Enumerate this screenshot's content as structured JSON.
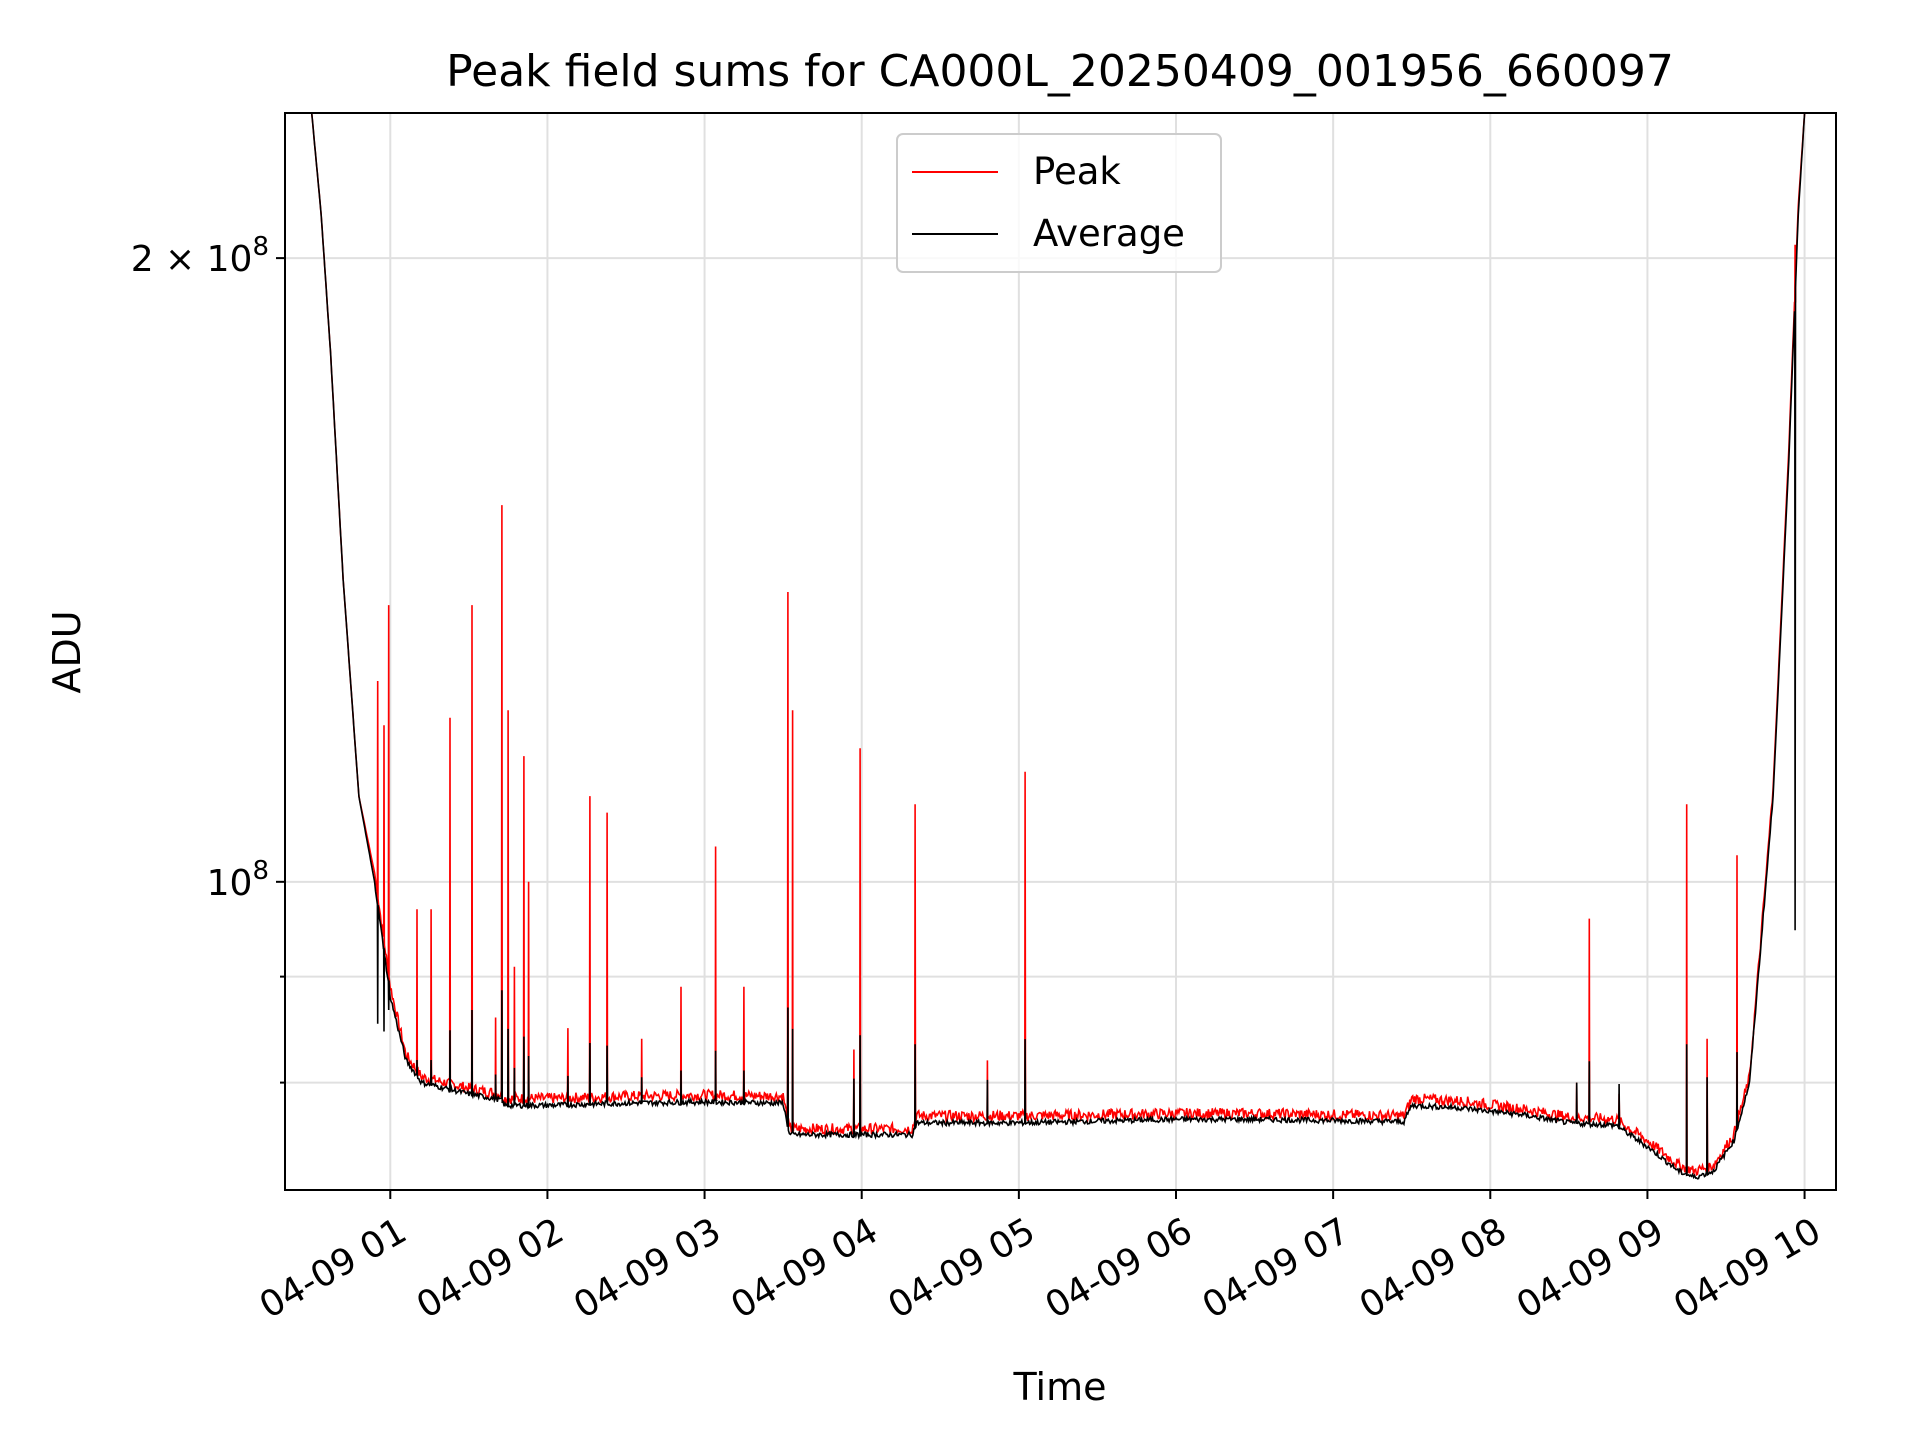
{
  "chart_data": {
    "type": "line",
    "title": "Peak field sums for CA000L_20250409_001956_660097",
    "xlabel": "Time",
    "ylabel": "ADU",
    "x_unit": "hours after 2025-04-09 00:00",
    "x_ticks": [
      {
        "value": 1,
        "label": "04-09 01"
      },
      {
        "value": 2,
        "label": "04-09 02"
      },
      {
        "value": 3,
        "label": "04-09 03"
      },
      {
        "value": 4,
        "label": "04-09 04"
      },
      {
        "value": 5,
        "label": "04-09 05"
      },
      {
        "value": 6,
        "label": "04-09 06"
      },
      {
        "value": 7,
        "label": "04-09 07"
      },
      {
        "value": 8,
        "label": "04-09 08"
      },
      {
        "value": 9,
        "label": "04-09 09"
      },
      {
        "value": 10,
        "label": "04-09 10"
      }
    ],
    "xlim": [
      0.33,
      10.2
    ],
    "y_scale": "log",
    "ylim": [
      71000000,
      235000000
    ],
    "y_ticks": [
      {
        "value": 100000000,
        "base": "10",
        "exp": "8",
        "coef": ""
      },
      {
        "value": 200000000,
        "base": "10",
        "exp": "8",
        "coef": "2"
      }
    ],
    "y_minor_ticks": [
      80000000,
      90000000
    ],
    "grid": true,
    "legend": {
      "position": "top-center",
      "entries": [
        "Peak",
        "Average"
      ]
    },
    "colors": {
      "Peak": "#ff0000",
      "Average": "#000000"
    },
    "series": [
      {
        "name": "Average",
        "color": "#000000",
        "points": [
          [
            0.33,
            235000000
          ],
          [
            0.5,
            235000000
          ],
          [
            0.56,
            210000000
          ],
          [
            0.62,
            180000000
          ],
          [
            0.7,
            140000000
          ],
          [
            0.8,
            110000000
          ],
          [
            0.9,
            100000000
          ],
          [
            1.0,
            88000000
          ],
          [
            1.1,
            82000000
          ],
          [
            1.2,
            80000000
          ],
          [
            1.5,
            79000000
          ],
          [
            1.7,
            78500000
          ],
          [
            1.73,
            78000000
          ],
          [
            2.0,
            78000000
          ],
          [
            2.5,
            78200000
          ],
          [
            3.0,
            78300000
          ],
          [
            3.5,
            78200000
          ],
          [
            3.54,
            75500000
          ],
          [
            4.0,
            75500000
          ],
          [
            4.32,
            75500000
          ],
          [
            4.35,
            76500000
          ],
          [
            5.0,
            76500000
          ],
          [
            6.0,
            76800000
          ],
          [
            6.5,
            76800000
          ],
          [
            7.0,
            76700000
          ],
          [
            7.45,
            76600000
          ],
          [
            7.5,
            78000000
          ],
          [
            7.8,
            77800000
          ],
          [
            8.2,
            77200000
          ],
          [
            8.5,
            76500000
          ],
          [
            8.8,
            76300000
          ],
          [
            9.0,
            74500000
          ],
          [
            9.2,
            72500000
          ],
          [
            9.3,
            72000000
          ],
          [
            9.42,
            72500000
          ],
          [
            9.55,
            75000000
          ],
          [
            9.65,
            80000000
          ],
          [
            9.8,
            110000000
          ],
          [
            9.9,
            160000000
          ],
          [
            9.96,
            210000000
          ],
          [
            10.0,
            235000000
          ],
          [
            10.2,
            235000000
          ]
        ]
      },
      {
        "name": "Peak",
        "color": "#ff0000",
        "points": [
          [
            0.33,
            235000000
          ],
          [
            0.5,
            235000000
          ],
          [
            0.56,
            210000000
          ],
          [
            0.62,
            180000000
          ],
          [
            0.7,
            140000000
          ],
          [
            0.8,
            110000000
          ],
          [
            0.9,
            101000000
          ],
          [
            1.0,
            89000000
          ],
          [
            1.1,
            82500000
          ],
          [
            1.2,
            80500000
          ],
          [
            1.5,
            79500000
          ],
          [
            1.7,
            79000000
          ],
          [
            1.73,
            78600000
          ],
          [
            2.0,
            78600000
          ],
          [
            2.5,
            78800000
          ],
          [
            3.0,
            78900000
          ],
          [
            3.5,
            78800000
          ],
          [
            3.54,
            76000000
          ],
          [
            4.0,
            76000000
          ],
          [
            4.32,
            76000000
          ],
          [
            4.35,
            77100000
          ],
          [
            5.0,
            77100000
          ],
          [
            6.0,
            77300000
          ],
          [
            6.5,
            77300000
          ],
          [
            7.0,
            77200000
          ],
          [
            7.45,
            77100000
          ],
          [
            7.5,
            78600000
          ],
          [
            7.8,
            78400000
          ],
          [
            8.2,
            77700000
          ],
          [
            8.5,
            77000000
          ],
          [
            8.8,
            76800000
          ],
          [
            9.0,
            75000000
          ],
          [
            9.2,
            73000000
          ],
          [
            9.3,
            72500000
          ],
          [
            9.42,
            73000000
          ],
          [
            9.55,
            75500000
          ],
          [
            9.65,
            80500000
          ],
          [
            9.8,
            111000000
          ],
          [
            9.9,
            162000000
          ],
          [
            9.96,
            212000000
          ],
          [
            10.0,
            235000000
          ],
          [
            10.2,
            235000000
          ]
        ],
        "spikes": [
          [
            0.92,
            125000000
          ],
          [
            0.96,
            119000000
          ],
          [
            0.99,
            136000000
          ],
          [
            1.17,
            97000000
          ],
          [
            1.26,
            97000000
          ],
          [
            1.38,
            120000000
          ],
          [
            1.52,
            136000000
          ],
          [
            1.67,
            86000000
          ],
          [
            1.71,
            152000000
          ],
          [
            1.75,
            121000000
          ],
          [
            1.79,
            91000000
          ],
          [
            1.85,
            115000000
          ],
          [
            1.88,
            100000000
          ],
          [
            2.13,
            85000000
          ],
          [
            2.27,
            110000000
          ],
          [
            2.38,
            108000000
          ],
          [
            2.6,
            84000000
          ],
          [
            2.85,
            89000000
          ],
          [
            3.07,
            104000000
          ],
          [
            3.25,
            89000000
          ],
          [
            3.53,
            138000000
          ],
          [
            3.56,
            121000000
          ],
          [
            3.95,
            83000000
          ],
          [
            3.99,
            116000000
          ],
          [
            4.34,
            109000000
          ],
          [
            4.8,
            82000000
          ],
          [
            5.04,
            113000000
          ],
          [
            8.55,
            80000000
          ],
          [
            8.63,
            96000000
          ],
          [
            8.82,
            79000000
          ],
          [
            9.25,
            109000000
          ],
          [
            9.38,
            84000000
          ],
          [
            9.57,
            103000000
          ],
          [
            9.94,
            203000000
          ]
        ]
      }
    ]
  }
}
